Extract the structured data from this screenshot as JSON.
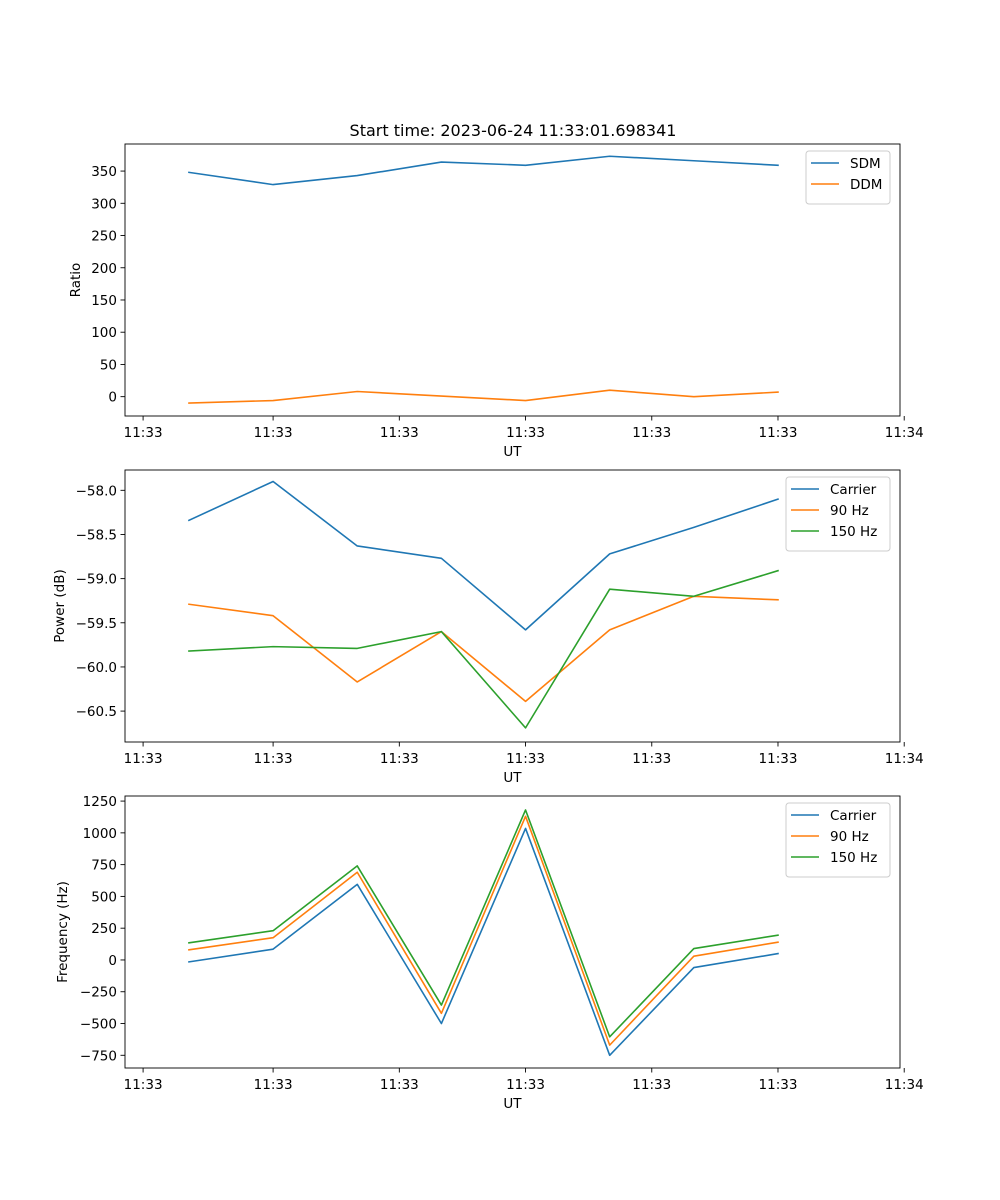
{
  "figure": {
    "title": "Start time: 2023-06-24 11:33:01.698341"
  },
  "chart_data": [
    {
      "type": "line",
      "title": "Start time: 2023-06-24 11:33:01.698341",
      "xlabel": "UT",
      "ylabel": "Ratio",
      "x_tick_labels": [
        "11:33",
        "11:33",
        "11:33",
        "11:33",
        "11:33",
        "11:33",
        "11:34"
      ],
      "x_points": 8,
      "xlim": [
        -0.76,
        8.45
      ],
      "ylim": [
        -30,
        392
      ],
      "y_ticks": [
        0,
        50,
        100,
        150,
        200,
        250,
        300,
        350
      ],
      "legend": "top-right",
      "series": [
        {
          "name": "SDM",
          "color": "#1f77b4",
          "values": [
            348,
            329,
            343,
            364,
            359,
            373,
            366,
            359
          ]
        },
        {
          "name": "DDM",
          "color": "#ff7f0e",
          "values": [
            -10,
            -6,
            8,
            1,
            -6,
            10,
            0,
            7
          ]
        }
      ]
    },
    {
      "type": "line",
      "xlabel": "UT",
      "ylabel": "Power (dB)",
      "x_tick_labels": [
        "11:33",
        "11:33",
        "11:33",
        "11:33",
        "11:33",
        "11:33",
        "11:34"
      ],
      "x_points": 8,
      "xlim": [
        -0.76,
        8.45
      ],
      "ylim": [
        -60.85,
        -57.77
      ],
      "y_ticks": [
        -58.0,
        -58.5,
        -59.0,
        -59.5,
        -60.0,
        -60.5
      ],
      "y_tick_labels": [
        "−58.0",
        "−58.5",
        "−59.0",
        "−59.5",
        "−60.0",
        "−60.5"
      ],
      "legend": "top-right",
      "series": [
        {
          "name": "Carrier",
          "color": "#1f77b4",
          "values": [
            -58.34,
            -57.9,
            -58.63,
            -58.77,
            -59.58,
            -58.72,
            -58.42,
            -58.1
          ]
        },
        {
          "name": "90 Hz",
          "color": "#ff7f0e",
          "values": [
            -59.29,
            -59.42,
            -60.17,
            -59.6,
            -60.39,
            -59.58,
            -59.2,
            -59.24
          ]
        },
        {
          "name": "150 Hz",
          "color": "#2ca02c",
          "values": [
            -59.82,
            -59.77,
            -59.79,
            -59.6,
            -60.69,
            -59.12,
            -59.2,
            -58.91
          ]
        }
      ]
    },
    {
      "type": "line",
      "xlabel": "UT",
      "ylabel": "Frequency (Hz)",
      "x_tick_labels": [
        "11:33",
        "11:33",
        "11:33",
        "11:33",
        "11:33",
        "11:33",
        "11:34"
      ],
      "x_points": 8,
      "xlim": [
        -0.76,
        8.45
      ],
      "ylim": [
        -850,
        1290
      ],
      "y_ticks": [
        1250,
        1000,
        750,
        500,
        250,
        0,
        -250,
        -500,
        -750
      ],
      "y_tick_labels": [
        "1250",
        "1000",
        "750",
        "500",
        "250",
        "0",
        "−250",
        "−500",
        "−750"
      ],
      "legend": "top-right",
      "series": [
        {
          "name": "Carrier",
          "color": "#1f77b4",
          "values": [
            -15,
            85,
            595,
            -500,
            1035,
            -750,
            -60,
            50
          ]
        },
        {
          "name": "90 Hz",
          "color": "#ff7f0e",
          "values": [
            80,
            175,
            690,
            -420,
            1130,
            -670,
            30,
            140
          ]
        },
        {
          "name": "150 Hz",
          "color": "#2ca02c",
          "values": [
            135,
            230,
            740,
            -355,
            1180,
            -605,
            90,
            195
          ]
        }
      ]
    }
  ]
}
